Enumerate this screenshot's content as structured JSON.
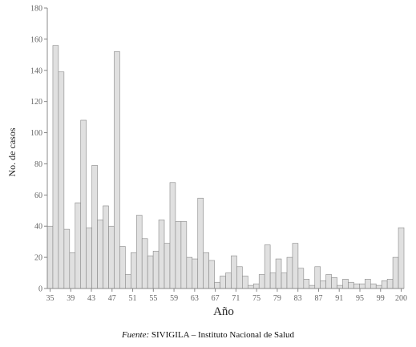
{
  "chart_data": {
    "type": "bar",
    "title": "",
    "xlabel": "Año",
    "ylabel": "No. de casos",
    "ylim": [
      0,
      180
    ],
    "yticks": [
      0,
      20,
      40,
      60,
      80,
      100,
      120,
      140,
      160,
      180
    ],
    "x_tick_labels": [
      "35",
      "39",
      "43",
      "47",
      "51",
      "55",
      "59",
      "63",
      "67",
      "71",
      "75",
      "79",
      "83",
      "87",
      "91",
      "95",
      "99",
      "200"
    ],
    "grid": false,
    "legend": "none",
    "bar_fill": "#e0e0e0",
    "bar_stroke": "#888888",
    "values": [
      40,
      156,
      139,
      38,
      23,
      55,
      108,
      39,
      79,
      44,
      53,
      40,
      152,
      27,
      9,
      23,
      47,
      32,
      21,
      24,
      44,
      29,
      68,
      43,
      43,
      20,
      19,
      58,
      23,
      18,
      4,
      8,
      10,
      21,
      14,
      8,
      2,
      3,
      9,
      28,
      10,
      19,
      10,
      20,
      29,
      13,
      6,
      2,
      14,
      5,
      9,
      7,
      2,
      6,
      4,
      3,
      3,
      6,
      3,
      2,
      5,
      6,
      20,
      39
    ]
  },
  "source": {
    "prefix": "Fuente:",
    "text": "SIVIGILA – Instituto Nacional de Salud"
  }
}
